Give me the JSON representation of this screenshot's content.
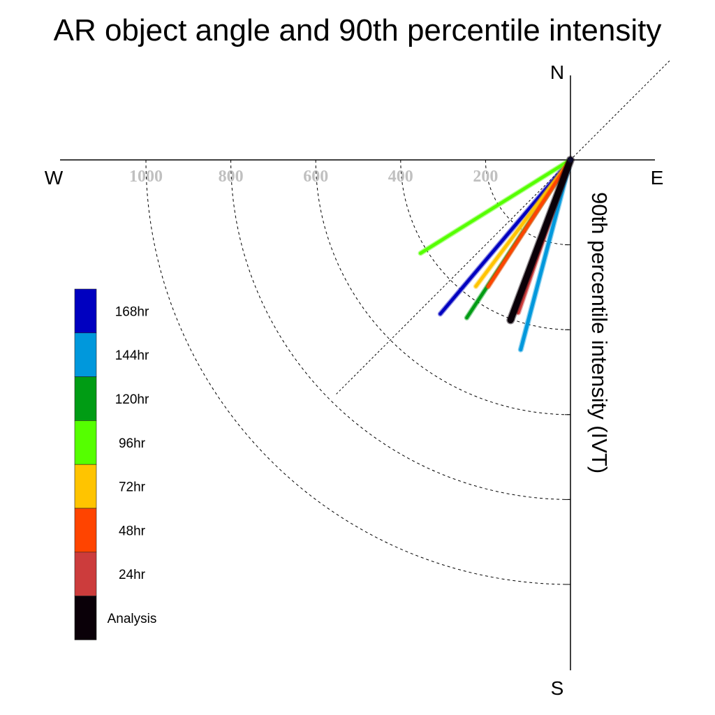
{
  "chart_data": {
    "type": "polar-vector",
    "title": "AR object angle and 90th percentile intensity",
    "ylabel": "90th percentile intensity (IVT)",
    "directions": {
      "north": "N",
      "south": "S",
      "east": "E",
      "west": "W"
    },
    "radial_ticks": [
      200,
      400,
      600,
      800,
      1000
    ],
    "radial_tick_labels": [
      "200",
      "400",
      "600",
      "800",
      "1000"
    ],
    "rmax": 1200,
    "grid": true,
    "legend_position": "left",
    "series": [
      {
        "name": "168hr",
        "color": "#0000c0",
        "angle_deg": 220.2,
        "intensity": 475
      },
      {
        "name": "144hr",
        "color": "#0098dc",
        "angle_deg": 194.7,
        "intensity": 462
      },
      {
        "name": "120hr",
        "color": "#009c14",
        "angle_deg": 213.3,
        "intensity": 445
      },
      {
        "name": "96hr",
        "color": "#55ff00",
        "angle_deg": 238.1,
        "intensity": 416
      },
      {
        "name": "72hr",
        "color": "#ffc400",
        "angle_deg": 216.8,
        "intensity": 372
      },
      {
        "name": "48hr",
        "color": "#ff4400",
        "angle_deg": 213.0,
        "intensity": 356
      },
      {
        "name": "24hr",
        "color": "#cc3c3c",
        "angle_deg": 198.9,
        "intensity": 380
      },
      {
        "name": "Analysis",
        "color": "#0a0008",
        "angle_deg": 200.5,
        "intensity": 403
      }
    ]
  }
}
